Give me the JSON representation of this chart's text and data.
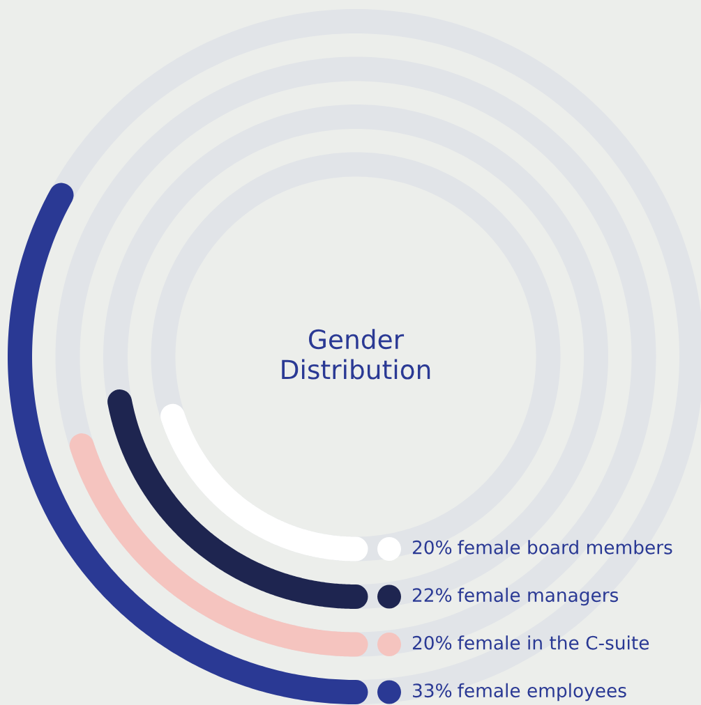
{
  "chart_data": {
    "type": "other",
    "title": "Gender Distribution",
    "categories": [
      "female board members",
      "female managers",
      "female in the C-suite",
      "female employees"
    ],
    "values": [
      20,
      22,
      20,
      33
    ],
    "value_labels": [
      "20%",
      "22%",
      "20%",
      "33%"
    ],
    "colors": [
      "#ffffff",
      "#1e2550",
      "#f5c4bf",
      "#2a3994"
    ]
  }
}
